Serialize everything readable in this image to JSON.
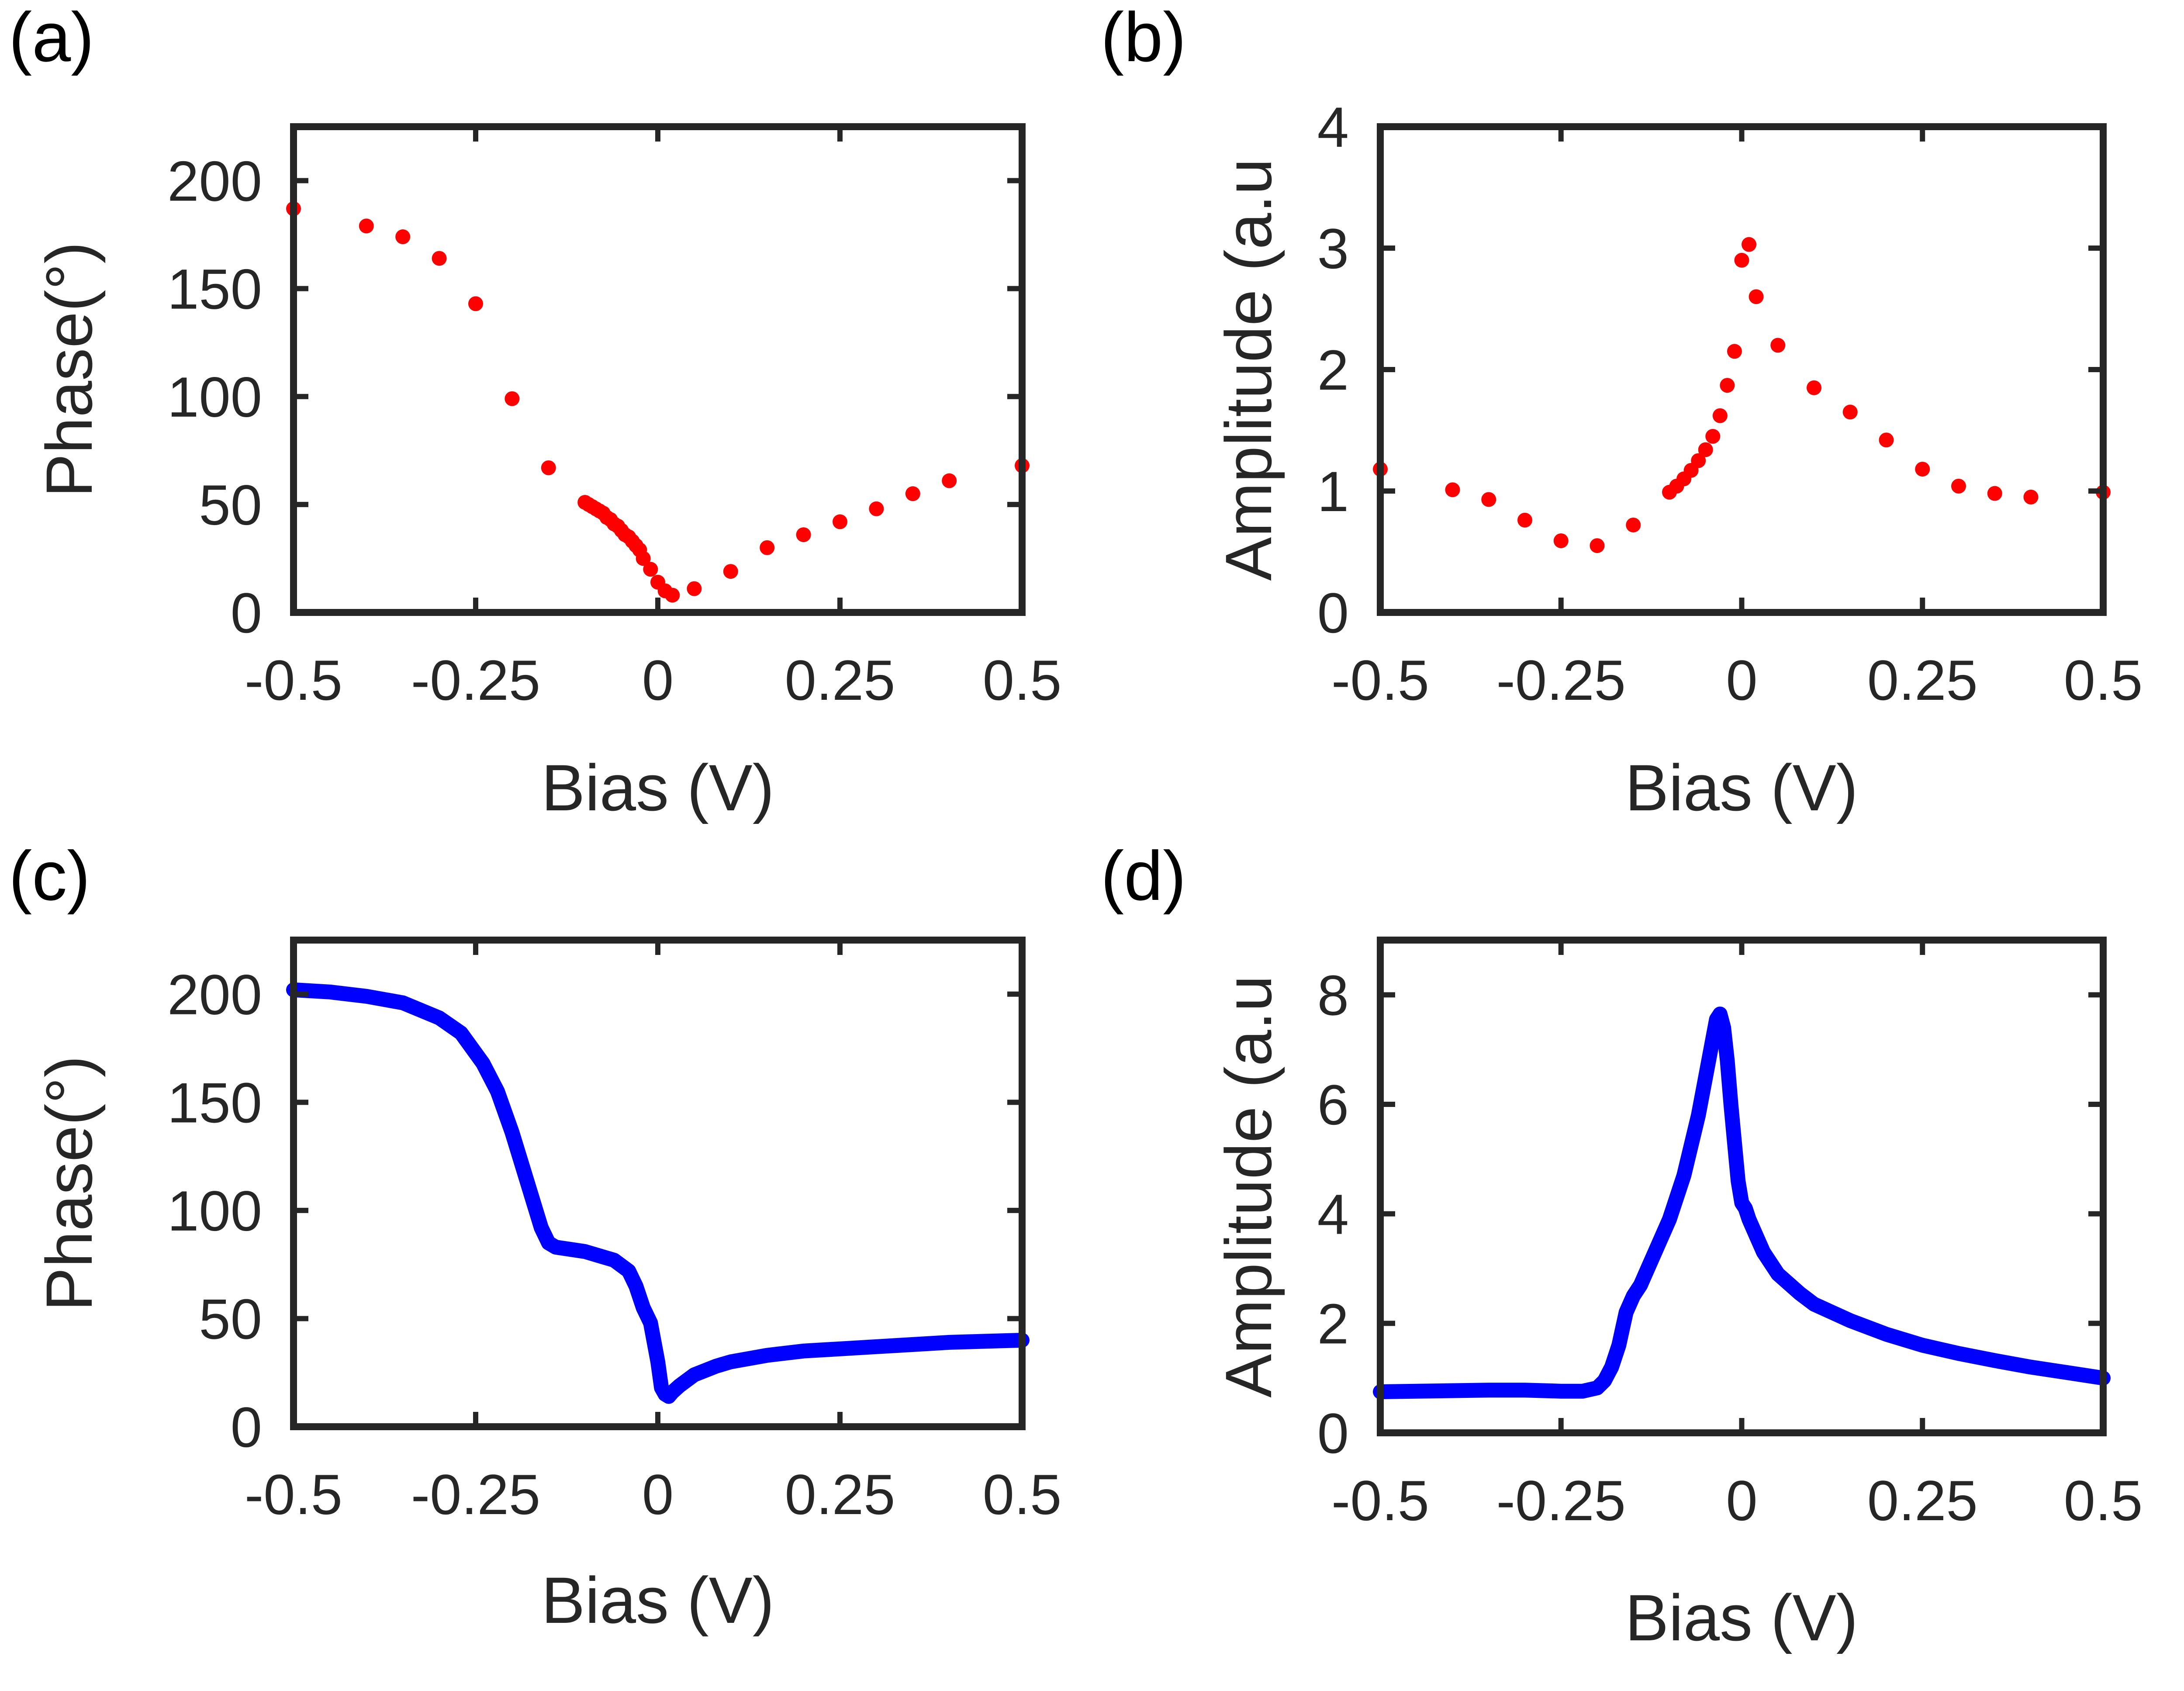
{
  "figure": {
    "panel_labels": [
      "(a)",
      "(b)",
      "(c)",
      "(d)"
    ]
  },
  "colors": {
    "red": "#ff0000",
    "blue": "#0000ff",
    "axis": "#262626"
  },
  "chart_data": [
    {
      "id": "a",
      "type": "scatter",
      "panel_label": "(a)",
      "xlabel": "Bias (V)",
      "ylabel": "Phase(°)",
      "xlim": [
        -0.5,
        0.5
      ],
      "ylim": [
        0,
        225
      ],
      "xticks": [
        -0.5,
        -0.25,
        0,
        0.25,
        0.5
      ],
      "xtick_labels": [
        "-0.5",
        "-0.25",
        "0",
        "0.25",
        "0.5"
      ],
      "yticks": [
        0,
        50,
        100,
        150,
        200
      ],
      "ytick_labels": [
        "0",
        "50",
        "100",
        "150",
        "200"
      ],
      "color": "#ff0000",
      "x": [
        -0.5,
        -0.4,
        -0.35,
        -0.3,
        -0.25,
        -0.2,
        -0.15,
        -0.1,
        -0.095,
        -0.09,
        -0.085,
        -0.08,
        -0.075,
        -0.07,
        -0.065,
        -0.06,
        -0.055,
        -0.05,
        -0.045,
        -0.04,
        -0.035,
        -0.03,
        -0.025,
        -0.02,
        -0.01,
        0.0,
        0.01,
        0.02,
        0.05,
        0.1,
        0.15,
        0.2,
        0.25,
        0.3,
        0.35,
        0.4,
        0.5
      ],
      "y": [
        187,
        179,
        174,
        164,
        143,
        99,
        67,
        51,
        50,
        49,
        48,
        47,
        46,
        44,
        43,
        41,
        40,
        38,
        36,
        35,
        33,
        31,
        29,
        25,
        20,
        14,
        10,
        8,
        11,
        19,
        30,
        36,
        42,
        48,
        55,
        61,
        68
      ]
    },
    {
      "id": "b",
      "type": "scatter",
      "panel_label": "(b)",
      "xlabel": "Bias (V)",
      "ylabel": "Amplitude (a.u",
      "xlim": [
        -0.5,
        0.5
      ],
      "ylim": [
        0,
        4
      ],
      "xticks": [
        -0.5,
        -0.25,
        0,
        0.25,
        0.5
      ],
      "xtick_labels": [
        "-0.5",
        "-0.25",
        "0",
        "0.25",
        "0.5"
      ],
      "yticks": [
        0,
        1,
        2,
        3,
        4
      ],
      "ytick_labels": [
        "0",
        "1",
        "2",
        "3",
        "4"
      ],
      "color": "#ff0000",
      "x": [
        -0.5,
        -0.4,
        -0.35,
        -0.3,
        -0.25,
        -0.2,
        -0.15,
        -0.1,
        -0.09,
        -0.08,
        -0.07,
        -0.06,
        -0.05,
        -0.04,
        -0.03,
        -0.02,
        -0.01,
        0.0,
        0.01,
        0.02,
        0.05,
        0.1,
        0.15,
        0.2,
        0.25,
        0.3,
        0.35,
        0.4,
        0.5
      ],
      "y": [
        1.18,
        1.01,
        0.93,
        0.76,
        0.59,
        0.55,
        0.72,
        0.99,
        1.04,
        1.1,
        1.17,
        1.25,
        1.34,
        1.45,
        1.62,
        1.87,
        2.15,
        2.9,
        3.03,
        2.6,
        2.2,
        1.85,
        1.65,
        1.42,
        1.18,
        1.04,
        0.98,
        0.95,
        0.99
      ]
    },
    {
      "id": "c",
      "type": "line",
      "panel_label": "(c)",
      "xlabel": "Bias (V)",
      "ylabel": "Phase(°)",
      "xlim": [
        -0.5,
        0.5
      ],
      "ylim": [
        0,
        225
      ],
      "xticks": [
        -0.5,
        -0.25,
        0,
        0.25,
        0.5
      ],
      "xtick_labels": [
        "-0.5",
        "-0.25",
        "0",
        "0.25",
        "0.5"
      ],
      "yticks": [
        0,
        50,
        100,
        150,
        200
      ],
      "ytick_labels": [
        "0",
        "50",
        "100",
        "150",
        "200"
      ],
      "color": "#0000ff",
      "x": [
        -0.5,
        -0.45,
        -0.4,
        -0.35,
        -0.3,
        -0.27,
        -0.24,
        -0.22,
        -0.2,
        -0.18,
        -0.16,
        -0.15,
        -0.14,
        -0.12,
        -0.1,
        -0.08,
        -0.06,
        -0.04,
        -0.03,
        -0.02,
        -0.01,
        0.0,
        0.005,
        0.01,
        0.015,
        0.02,
        0.03,
        0.05,
        0.08,
        0.1,
        0.15,
        0.2,
        0.25,
        0.3,
        0.35,
        0.4,
        0.45,
        0.5
      ],
      "y": [
        202,
        201,
        199,
        196,
        189,
        182,
        168,
        155,
        136,
        114,
        92,
        85,
        83,
        82,
        81,
        79,
        77,
        72,
        65,
        55,
        48,
        30,
        18,
        15,
        14,
        16,
        19,
        24,
        28,
        30,
        33,
        35,
        36,
        37,
        38,
        39,
        39.5,
        40
      ]
    },
    {
      "id": "d",
      "type": "line",
      "panel_label": "(d)",
      "xlabel": "Bias (V)",
      "ylabel": "Amplitude (a.u",
      "xlim": [
        -0.5,
        0.5
      ],
      "ylim": [
        0,
        9
      ],
      "xticks": [
        -0.5,
        -0.25,
        0,
        0.25,
        0.5
      ],
      "xtick_labels": [
        "-0.5",
        "-0.25",
        "0",
        "0.25",
        "0.5"
      ],
      "yticks": [
        0,
        2,
        4,
        6,
        8
      ],
      "ytick_labels": [
        "0",
        "2",
        "4",
        "6",
        "8"
      ],
      "color": "#0000ff",
      "x": [
        -0.5,
        -0.4,
        -0.35,
        -0.3,
        -0.25,
        -0.22,
        -0.2,
        -0.19,
        -0.18,
        -0.17,
        -0.16,
        -0.15,
        -0.14,
        -0.13,
        -0.12,
        -0.1,
        -0.08,
        -0.06,
        -0.05,
        -0.04,
        -0.035,
        -0.03,
        -0.025,
        -0.02,
        -0.015,
        -0.01,
        -0.005,
        0.0,
        0.005,
        0.01,
        0.02,
        0.03,
        0.05,
        0.08,
        0.1,
        0.15,
        0.2,
        0.25,
        0.3,
        0.35,
        0.4,
        0.45,
        0.5
      ],
      "y": [
        0.75,
        0.77,
        0.78,
        0.78,
        0.76,
        0.76,
        0.82,
        0.95,
        1.2,
        1.6,
        2.2,
        2.5,
        2.7,
        3.0,
        3.3,
        3.9,
        4.7,
        5.8,
        6.5,
        7.2,
        7.55,
        7.65,
        7.4,
        6.8,
        6.0,
        5.3,
        4.6,
        4.2,
        4.1,
        3.9,
        3.6,
        3.3,
        2.9,
        2.55,
        2.35,
        2.05,
        1.8,
        1.6,
        1.45,
        1.32,
        1.2,
        1.1,
        1.0
      ]
    }
  ]
}
